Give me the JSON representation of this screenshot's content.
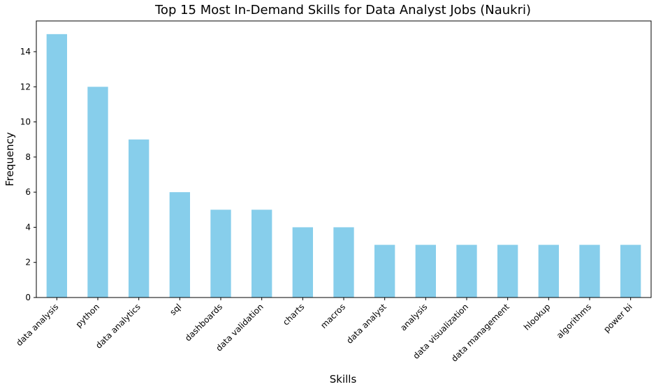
{
  "chart_data": {
    "type": "bar",
    "title": "Top 15 Most In-Demand Skills for Data Analyst Jobs (Naukri)",
    "xlabel": "Skills",
    "ylabel": "Frequency",
    "categories": [
      "data analysis",
      "python",
      "data analytics",
      "sql",
      "dashboards",
      "data validation",
      "charts",
      "macros",
      "data analyst",
      "analysis",
      "data visualization",
      "data management",
      "hlookup",
      "algorithms",
      "power bi"
    ],
    "values": [
      15,
      12,
      9,
      6,
      5,
      5,
      4,
      4,
      3,
      3,
      3,
      3,
      3,
      3,
      3
    ],
    "ylim": [
      0,
      15.75
    ],
    "yticks": [
      0,
      2,
      4,
      6,
      8,
      10,
      12,
      14
    ],
    "bar_color": "#87CEEB",
    "grid": false,
    "legend": false
  }
}
